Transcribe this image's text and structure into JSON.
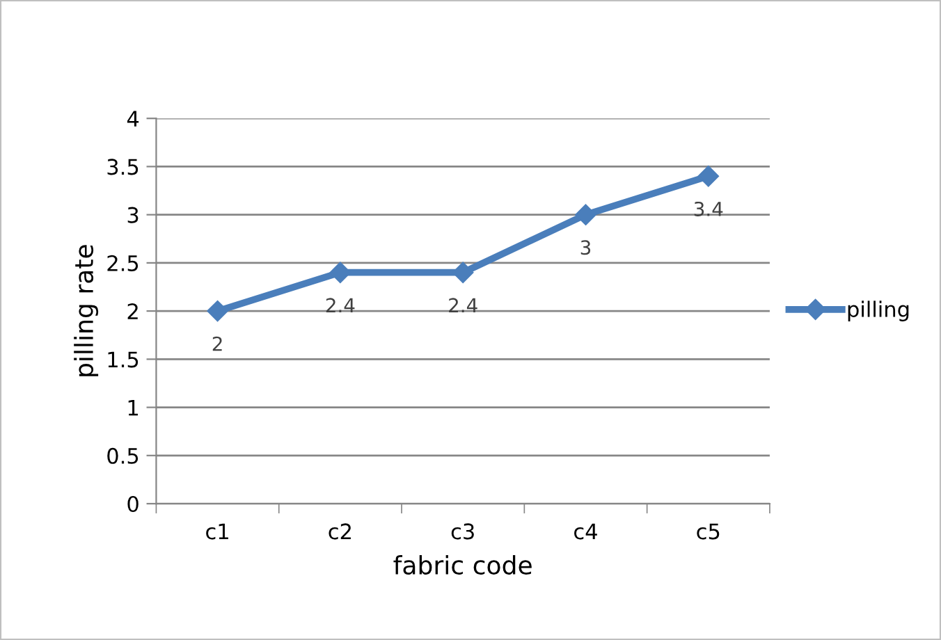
{
  "chart_data": {
    "type": "line",
    "xlabel": "fabric code",
    "ylabel": "pilling rate",
    "categories": [
      "c1",
      "c2",
      "c3",
      "c4",
      "c5"
    ],
    "series": [
      {
        "name": "pilling",
        "color": "#4a7ebb",
        "values": [
          2,
          2.4,
          2.4,
          3,
          3.4
        ]
      }
    ],
    "ylim": [
      0,
      4
    ],
    "yticks": [
      0,
      0.5,
      1,
      1.5,
      2,
      2.5,
      3,
      3.5,
      4
    ],
    "grid": "y",
    "legend": "right",
    "marker": "diamond",
    "line_style": "solid",
    "data_labels": true
  }
}
